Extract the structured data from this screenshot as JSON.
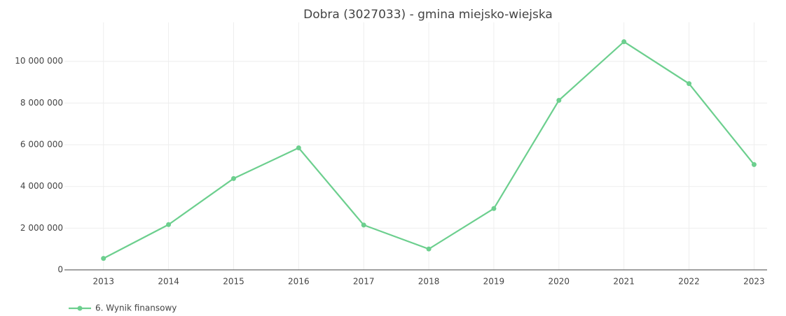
{
  "chart_data": {
    "type": "line",
    "title": "Dobra (3027033) - gmina miejsko-wiejska",
    "x": [
      2013,
      2014,
      2015,
      2016,
      2017,
      2018,
      2019,
      2020,
      2021,
      2022,
      2023
    ],
    "series": [
      {
        "name": "6. Wynik finansowy",
        "color": "#6ccf8e",
        "values": [
          550000,
          2170000,
          4380000,
          5850000,
          2150000,
          1000000,
          2940000,
          8130000,
          10940000,
          8930000,
          5050000
        ]
      }
    ],
    "xlim": [
      2012.4,
      2023.2
    ],
    "xticks": [
      2013,
      2014,
      2015,
      2016,
      2017,
      2018,
      2019,
      2020,
      2021,
      2022,
      2023
    ],
    "ylim": [
      0,
      11600000
    ],
    "yticks": [
      0,
      {
        "value": 2000000,
        "label": "2 000 000"
      },
      {
        "value": 4000000,
        "label": "4 000 000"
      },
      {
        "value": 6000000,
        "label": "6 000 000"
      },
      {
        "value": 8000000,
        "label": "8 000 000"
      },
      {
        "value": 10000000,
        "label": "10 000 000"
      }
    ],
    "grid": true
  }
}
